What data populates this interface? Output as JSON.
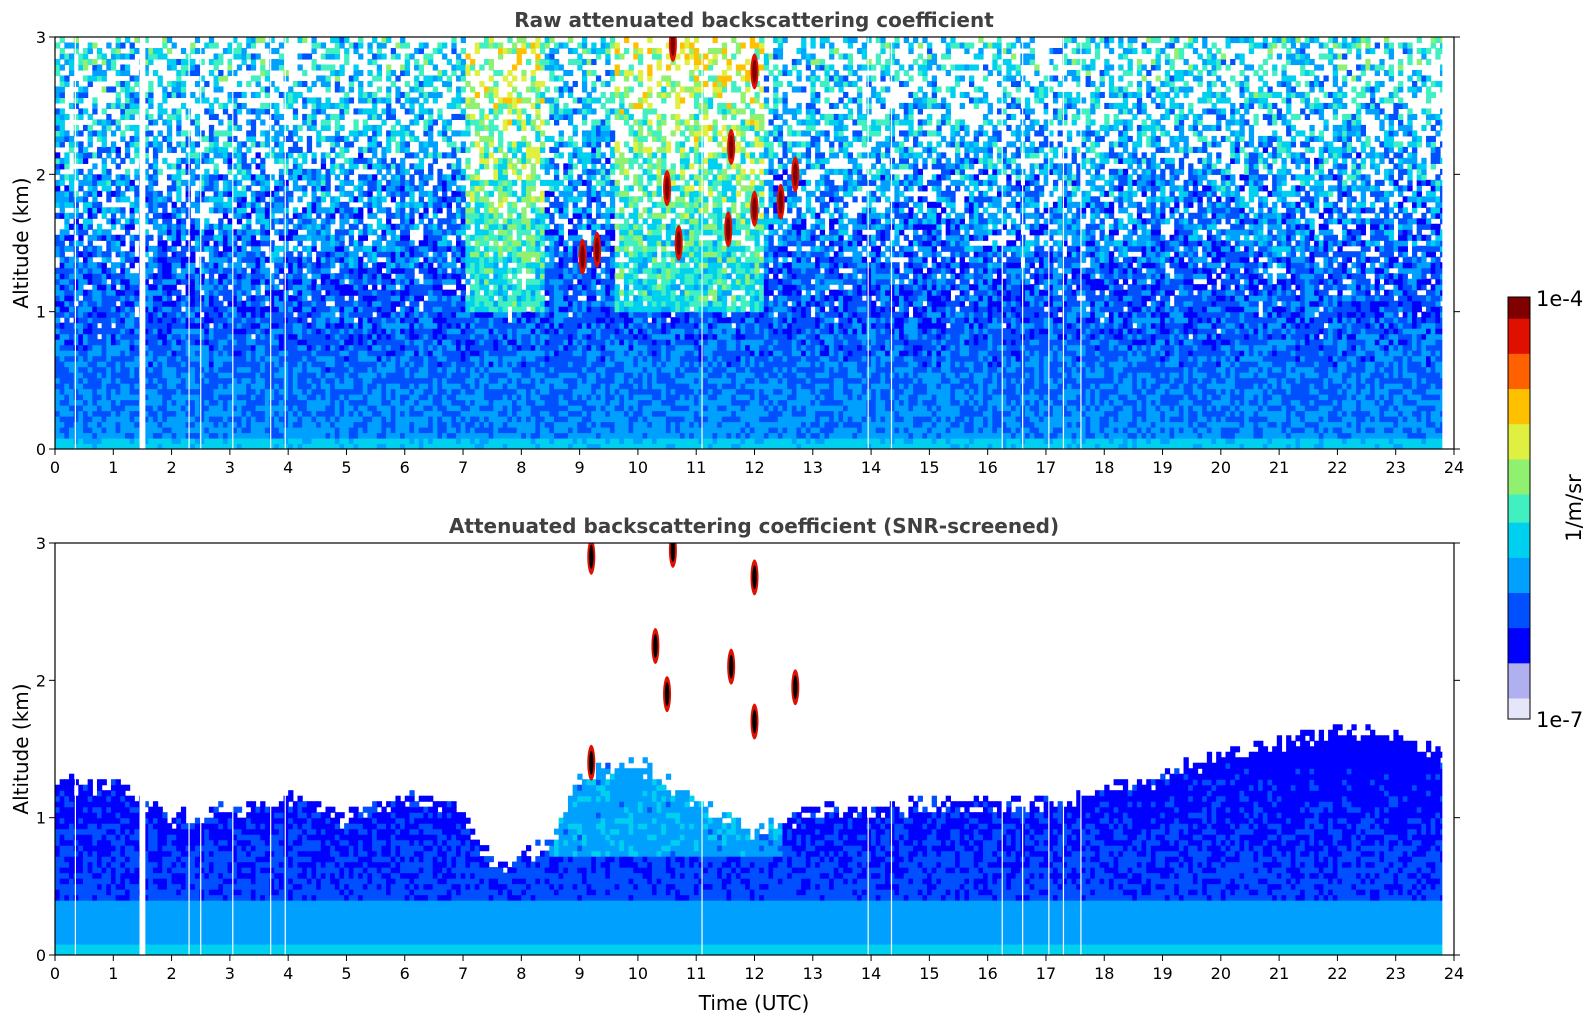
{
  "chart_data": [
    {
      "type": "heatmap",
      "title": "Raw attenuated backscattering coefficient",
      "xlabel": "",
      "ylabel": "Altitude (km)",
      "xlim": [
        0,
        24
      ],
      "ylim": [
        0,
        3
      ],
      "x_ticks": [
        "0",
        "1",
        "2",
        "3",
        "4",
        "5",
        "6",
        "7",
        "8",
        "9",
        "10",
        "11",
        "12",
        "13",
        "14",
        "15",
        "16",
        "17",
        "18",
        "19",
        "20",
        "21",
        "22",
        "23",
        "24"
      ],
      "y_ticks": [
        "0",
        "1",
        "2",
        "3"
      ],
      "grid": false,
      "features": {
        "data_gap_hours": [
          1.45,
          1.55
        ],
        "thin_gap_hours": [
          0.35,
          2.3,
          2.5,
          3.05,
          3.7,
          3.95,
          11.1,
          13.95,
          14.35,
          16.25,
          16.6,
          17.05,
          17.3,
          17.6
        ],
        "high_background_noise_hours": [
          7.0,
          8.4
        ],
        "cloud_features": [
          {
            "t": 9.05,
            "h": 1.4
          },
          {
            "t": 9.3,
            "h": 1.45
          },
          {
            "t": 10.5,
            "h": 1.9
          },
          {
            "t": 10.6,
            "h": 2.95
          },
          {
            "t": 10.7,
            "h": 1.5
          },
          {
            "t": 11.6,
            "h": 2.2
          },
          {
            "t": 11.55,
            "h": 1.6
          },
          {
            "t": 12.0,
            "h": 2.75
          },
          {
            "t": 12.0,
            "h": 1.75
          },
          {
            "t": 12.45,
            "h": 1.8
          },
          {
            "t": 12.7,
            "h": 2.0
          }
        ]
      }
    },
    {
      "type": "heatmap",
      "title": "Attenuated backscattering coefficient (SNR-screened)",
      "xlabel": "Time (UTC)",
      "ylabel": "Altitude (km)",
      "xlim": [
        0,
        24
      ],
      "ylim": [
        0,
        3
      ],
      "x_ticks": [
        "0",
        "1",
        "2",
        "3",
        "4",
        "5",
        "6",
        "7",
        "8",
        "9",
        "10",
        "11",
        "12",
        "13",
        "14",
        "15",
        "16",
        "17",
        "18",
        "19",
        "20",
        "21",
        "22",
        "23",
        "24"
      ],
      "y_ticks": [
        "0",
        "1",
        "2",
        "3"
      ],
      "grid": false,
      "features": {
        "aerosol_layer_top_km": {
          "t": [
            0,
            1,
            2,
            3,
            4,
            5,
            6,
            7,
            7.5,
            8,
            8.5,
            9,
            10,
            11,
            12,
            13,
            14,
            15,
            16,
            17,
            18,
            19,
            20,
            21,
            22,
            23,
            23.8
          ],
          "h": [
            1.25,
            1.25,
            1.0,
            1.05,
            1.15,
            1.0,
            1.15,
            1.05,
            0.65,
            0.7,
            0.8,
            1.3,
            1.4,
            1.1,
            0.9,
            1.05,
            1.05,
            1.1,
            1.1,
            1.1,
            1.2,
            1.3,
            1.45,
            1.55,
            1.65,
            1.6,
            1.45
          ]
        },
        "cloud_features": [
          {
            "t": 9.2,
            "h": 1.4
          },
          {
            "t": 9.2,
            "h": 2.9
          },
          {
            "t": 10.3,
            "h": 2.25
          },
          {
            "t": 10.5,
            "h": 1.9
          },
          {
            "t": 10.6,
            "h": 2.95
          },
          {
            "t": 11.6,
            "h": 2.1
          },
          {
            "t": 12.0,
            "h": 2.75
          },
          {
            "t": 12.0,
            "h": 1.7
          },
          {
            "t": 12.7,
            "h": 1.95
          }
        ]
      }
    }
  ],
  "colorbar": {
    "label": "1/m/sr",
    "max_label": "1e-4",
    "min_label": "1e-7",
    "colormap": "jet",
    "colors": [
      "#e6e6fa",
      "#b0b0f0",
      "#0000ff",
      "#0050ff",
      "#00a0ff",
      "#00d0f0",
      "#40f0c0",
      "#90f070",
      "#e0f040",
      "#ffc000",
      "#ff6000",
      "#e01000",
      "#800000"
    ]
  }
}
